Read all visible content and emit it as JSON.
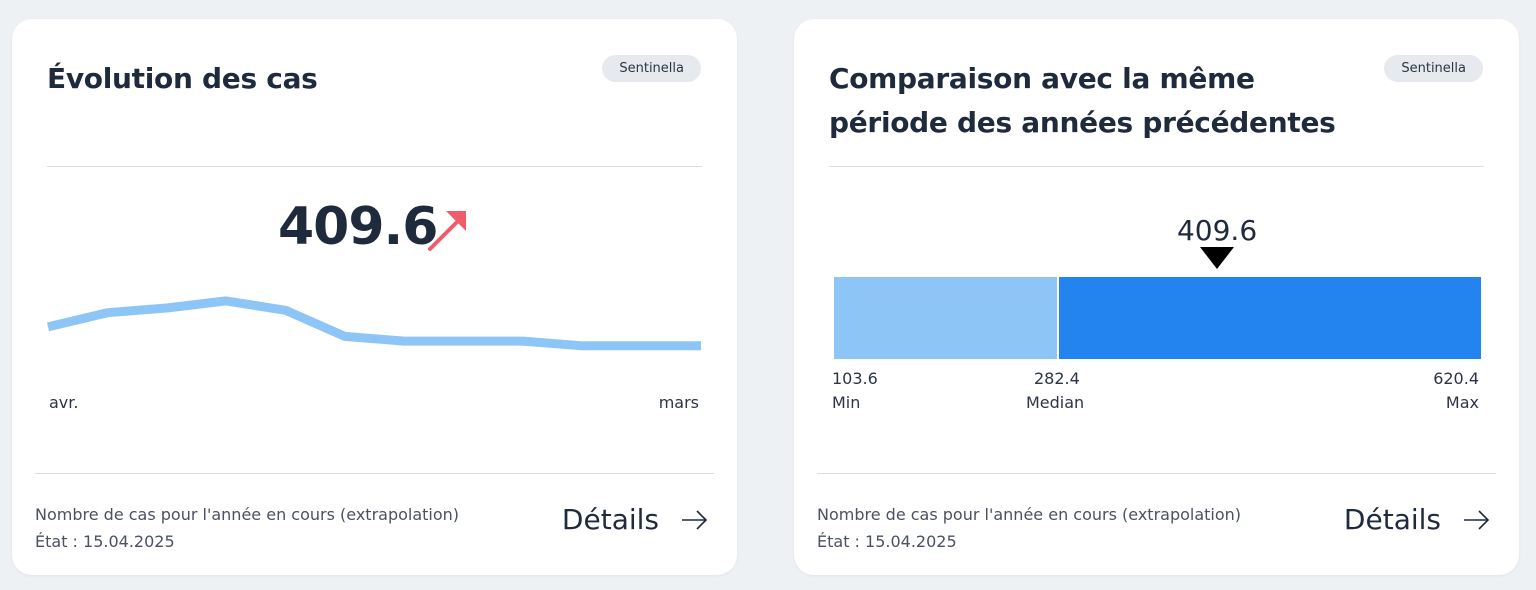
{
  "colors": {
    "line": "#8ec5f7",
    "trend_up": "#f05c6a",
    "bar_low": "#8ec5f7",
    "bar_high": "#2383ef",
    "marker": "#000000"
  },
  "card1": {
    "title": "Évolution des cas",
    "badge": "Sentinella",
    "value": "409.6",
    "trend_icon": "arrow-up-right-icon",
    "x_start_label": "avr.",
    "x_end_label": "mars",
    "sparkline": [
      33,
      39,
      41,
      44,
      40,
      29,
      27,
      27,
      27,
      25,
      25,
      25
    ],
    "sparkline_range": [
      0,
      60
    ],
    "footer_desc": "Nombre de cas pour l'année en cours (extrapolation)",
    "footer_date": "État : 15.04.2025",
    "details_label": "Détails"
  },
  "card2": {
    "title": "Comparaison avec la même période des années précédentes",
    "badge": "Sentinella",
    "current_value": 409.6,
    "current_value_label": "409.6",
    "min_value": 103.6,
    "median_value": 282.4,
    "max_value": 620.4,
    "min_num": "103.6",
    "median_num": "282.4",
    "max_num": "620.4",
    "min_label": "Min",
    "median_label": "Median",
    "max_label": "Max",
    "footer_desc": "Nombre de cas pour l'année en cours (extrapolation)",
    "footer_date": "État : 15.04.2025",
    "details_label": "Détails"
  }
}
